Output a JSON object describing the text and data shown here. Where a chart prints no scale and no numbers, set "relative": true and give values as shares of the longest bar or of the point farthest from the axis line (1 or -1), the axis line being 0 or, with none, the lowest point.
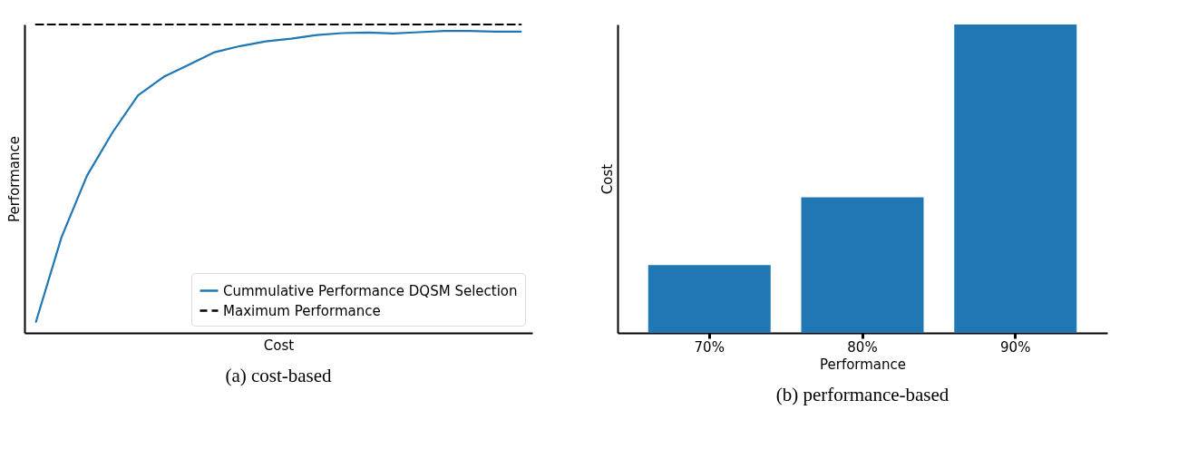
{
  "chart_data": [
    {
      "type": "line",
      "xlabel": "Cost",
      "ylabel": "Performance",
      "relative": true,
      "legend": "bottom right",
      "annotations": [
        "(a) cost-based"
      ],
      "categories": [
        null,
        null,
        null,
        null,
        null,
        null,
        null,
        null,
        null,
        null,
        null,
        null,
        null,
        null,
        null,
        null,
        null,
        null,
        null,
        null
      ],
      "series": [
        {
          "name": "Cummulative Performance DQSM Selection",
          "color": "#1f77b4",
          "line_style": "solid",
          "values": [
            0.036,
            0.31,
            0.51,
            0.65,
            0.77,
            0.83,
            0.87,
            0.91,
            0.93,
            0.945,
            0.954,
            0.966,
            0.972,
            0.974,
            0.971,
            0.975,
            0.979,
            0.979,
            0.977,
            0.977
          ]
        },
        {
          "name": "Maximum Performance",
          "color": "#000000",
          "line_style": "dashed",
          "values": [
            1,
            1,
            1,
            1,
            1,
            1,
            1,
            1,
            1,
            1,
            1,
            1,
            1,
            1,
            1,
            1,
            1,
            1,
            1,
            1
          ]
        }
      ]
    },
    {
      "type": "bar",
      "xlabel": "Performance",
      "ylabel": "Cost",
      "relative": true,
      "annotations": [
        "(b) performance-based"
      ],
      "categories": [
        "70%",
        "80%",
        "90%"
      ],
      "values": [
        0.22,
        0.44,
        1
      ],
      "color": "#2077b4"
    }
  ]
}
